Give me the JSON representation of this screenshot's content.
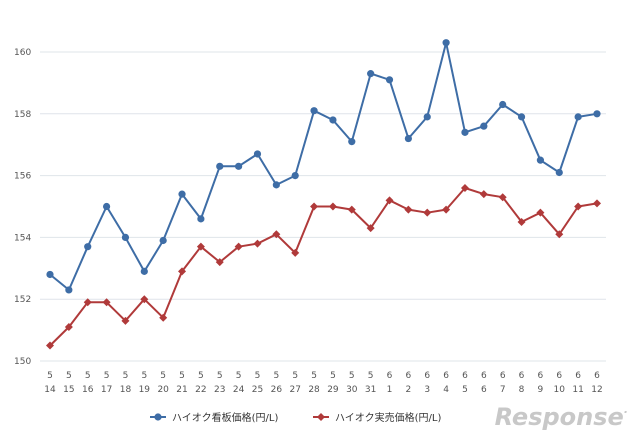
{
  "chart_data": {
    "type": "line",
    "title": "",
    "xlabel": "",
    "ylabel": "",
    "ylim": [
      150,
      160
    ],
    "yticks": [
      150,
      152,
      154,
      156,
      158,
      160
    ],
    "grid": true,
    "legend_position": "bottom",
    "categories": [
      {
        "month": "5",
        "day": "14"
      },
      {
        "month": "5",
        "day": "15"
      },
      {
        "month": "5",
        "day": "16"
      },
      {
        "month": "5",
        "day": "17"
      },
      {
        "month": "5",
        "day": "18"
      },
      {
        "month": "5",
        "day": "19"
      },
      {
        "month": "5",
        "day": "20"
      },
      {
        "month": "5",
        "day": "21"
      },
      {
        "month": "5",
        "day": "22"
      },
      {
        "month": "5",
        "day": "23"
      },
      {
        "month": "5",
        "day": "24"
      },
      {
        "month": "5",
        "day": "25"
      },
      {
        "month": "5",
        "day": "26"
      },
      {
        "month": "5",
        "day": "27"
      },
      {
        "month": "5",
        "day": "28"
      },
      {
        "month": "5",
        "day": "29"
      },
      {
        "month": "5",
        "day": "30"
      },
      {
        "month": "5",
        "day": "31"
      },
      {
        "month": "6",
        "day": "1"
      },
      {
        "month": "6",
        "day": "2"
      },
      {
        "month": "6",
        "day": "3"
      },
      {
        "month": "6",
        "day": "4"
      },
      {
        "month": "6",
        "day": "5"
      },
      {
        "month": "6",
        "day": "6"
      },
      {
        "month": "6",
        "day": "7"
      },
      {
        "month": "6",
        "day": "8"
      },
      {
        "month": "6",
        "day": "9"
      },
      {
        "month": "6",
        "day": "10"
      },
      {
        "month": "6",
        "day": "11"
      },
      {
        "month": "6",
        "day": "12"
      }
    ],
    "series": [
      {
        "name": "ハイオク看板価格(円/L)",
        "color": "#3e6da6",
        "marker": "circle",
        "values": [
          152.8,
          152.3,
          153.7,
          155.0,
          154.0,
          152.9,
          153.9,
          155.4,
          154.6,
          156.3,
          156.3,
          156.7,
          155.7,
          156.0,
          158.1,
          157.8,
          157.1,
          159.3,
          159.1,
          157.2,
          157.9,
          160.3,
          157.4,
          157.6,
          158.3,
          157.9,
          156.5,
          156.1,
          157.9,
          158.0
        ]
      },
      {
        "name": "ハイオク実売価格(円/L)",
        "color": "#b03a3a",
        "marker": "diamond",
        "values": [
          150.5,
          151.1,
          151.9,
          151.9,
          151.3,
          152.0,
          151.4,
          152.9,
          153.7,
          153.2,
          153.7,
          153.8,
          154.1,
          153.5,
          155.0,
          155.0,
          154.9,
          154.3,
          155.2,
          154.9,
          154.8,
          154.9,
          155.6,
          155.4,
          155.3,
          154.5,
          154.8,
          154.1,
          155.0,
          155.1
        ]
      }
    ]
  },
  "watermark": {
    "text": "Response",
    "suffix": "."
  }
}
